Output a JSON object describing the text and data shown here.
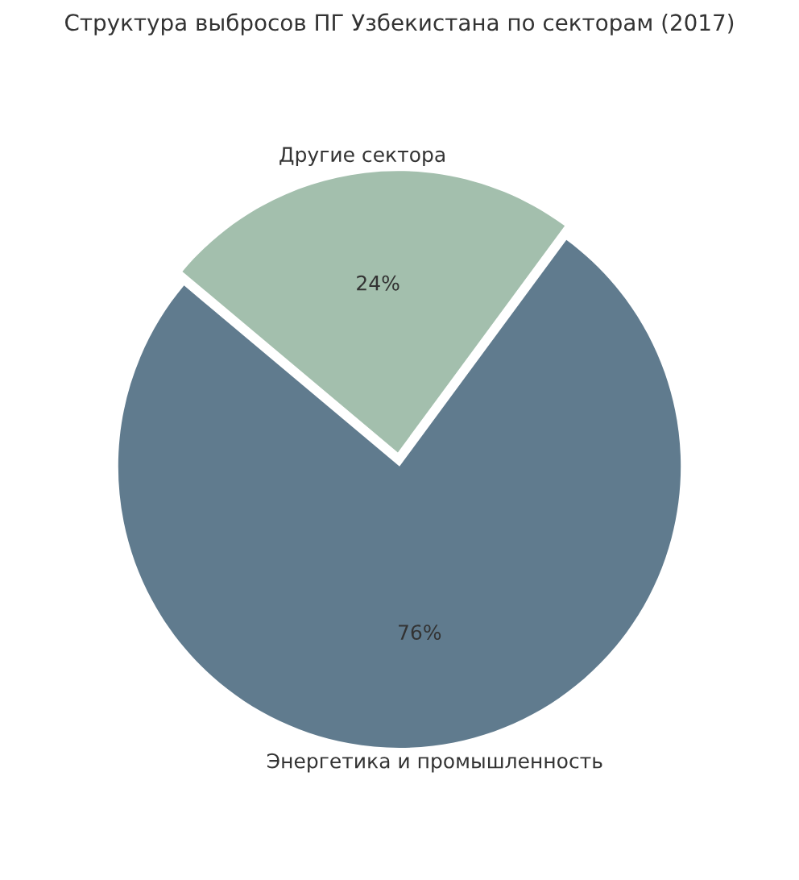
{
  "chart_data": {
    "type": "pie",
    "title": "Структура выбросов ПГ Узбекистана по секторам (2017)",
    "categories": [
      "Энергетика и промышленность",
      "Другие сектора"
    ],
    "values": [
      76,
      24
    ],
    "colors": [
      "#607b8e",
      "#a3bfad"
    ],
    "value_labels": [
      "76%",
      "24%"
    ]
  }
}
